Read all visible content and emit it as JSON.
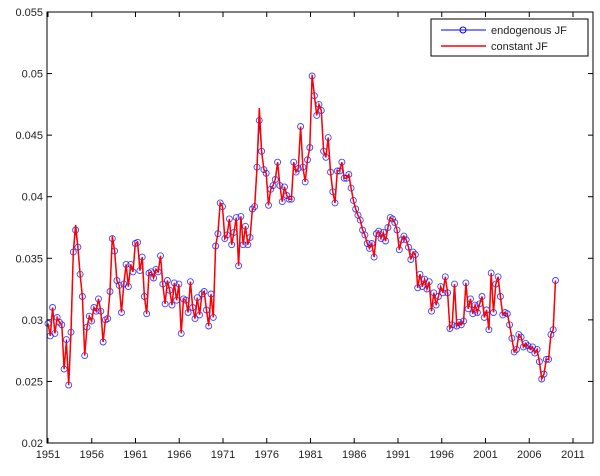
{
  "chart_data": {
    "type": "line",
    "title": "",
    "xlabel": "",
    "ylabel": "",
    "xlim": [
      1951,
      2011
    ],
    "ylim": [
      0.02,
      0.055
    ],
    "x_start": 1951,
    "x_end": 2009,
    "x_ticks": [
      "1951",
      "1956",
      "1961",
      "1966",
      "1971",
      "1976",
      "1981",
      "1986",
      "1991",
      "1996",
      "2001",
      "2006",
      "2011"
    ],
    "y_ticks": [
      "0.02",
      "0.025",
      "0.03",
      "0.035",
      "0.04",
      "0.045",
      "0.05",
      "0.055"
    ],
    "grid": false,
    "legend_position": "top-right",
    "series": [
      {
        "name": "endogenous JF",
        "color": "#0000ff",
        "marker": "circle",
        "values": [
          0.0297,
          0.0287,
          0.031,
          0.0289,
          0.0302,
          0.0298,
          0.0296,
          0.026,
          0.0284,
          0.0247,
          0.029,
          0.0355,
          0.0373,
          0.0359,
          0.0337,
          0.0319,
          0.0271,
          0.0294,
          0.0303,
          0.0299,
          0.031,
          0.0307,
          0.0317,
          0.0307,
          0.0282,
          0.03,
          0.0301,
          0.0323,
          0.0366,
          0.0356,
          0.0332,
          0.0328,
          0.0306,
          0.0329,
          0.0345,
          0.0327,
          0.0345,
          0.0339,
          0.0362,
          0.0363,
          0.034,
          0.0351,
          0.0319,
          0.0305,
          0.0338,
          0.0339,
          0.0334,
          0.0341,
          0.0339,
          0.0352,
          0.0329,
          0.0313,
          0.0332,
          0.0324,
          0.0312,
          0.033,
          0.0316,
          0.0329,
          0.0289,
          0.0317,
          0.0316,
          0.0306,
          0.0331,
          0.031,
          0.0301,
          0.0318,
          0.0304,
          0.0321,
          0.0323,
          0.0308,
          0.0295,
          0.0321,
          0.0302,
          0.036,
          0.037,
          0.0395,
          0.0392,
          0.0366,
          0.0369,
          0.0382,
          0.0361,
          0.0371,
          0.0383,
          0.0344,
          0.0384,
          0.0361,
          0.0376,
          0.0361,
          0.0367,
          0.039,
          0.0392,
          0.0424,
          0.0462,
          0.0437,
          0.0422,
          0.0419,
          0.0393,
          0.0406,
          0.0409,
          0.0414,
          0.0428,
          0.0409,
          0.0396,
          0.0408,
          0.0401,
          0.0398,
          0.0398,
          0.0428,
          0.042,
          0.0423,
          0.0457,
          0.0424,
          0.0412,
          0.043,
          0.044,
          0.0498,
          0.0482,
          0.0466,
          0.0475,
          0.047,
          0.0437,
          0.0432,
          0.0448,
          0.042,
          0.0404,
          0.0395,
          0.0421,
          0.0421,
          0.0428,
          0.0415,
          0.0415,
          0.0418,
          0.0407,
          0.0397,
          0.039,
          0.0385,
          0.0381,
          0.0373,
          0.0369,
          0.0362,
          0.0358,
          0.0362,
          0.0351,
          0.037,
          0.0372,
          0.0366,
          0.0371,
          0.0364,
          0.0375,
          0.0383,
          0.0382,
          0.0379,
          0.0373,
          0.0357,
          0.0365,
          0.0368,
          0.0365,
          0.0359,
          0.0349,
          0.0355,
          0.0353,
          0.0326,
          0.0337,
          0.0327,
          0.0333,
          0.0325,
          0.0331,
          0.0307,
          0.0322,
          0.0312,
          0.0319,
          0.0327,
          0.0322,
          0.0335,
          0.0322,
          0.0293,
          0.0296,
          0.0329,
          0.0295,
          0.0298,
          0.0296,
          0.0299,
          0.033,
          0.0309,
          0.0317,
          0.0305,
          0.0312,
          0.0306,
          0.0313,
          0.0319,
          0.0302,
          0.0308,
          0.0292,
          0.0338,
          0.0306,
          0.0329,
          0.0335,
          0.0319,
          0.0304,
          0.0306,
          0.0305,
          0.0296,
          0.0285,
          0.0274,
          0.0276,
          0.0288,
          0.0286,
          0.0278,
          0.0281,
          0.0279,
          0.0276,
          0.0278,
          0.0273,
          0.0276,
          0.0266,
          0.0252,
          0.0256,
          0.0268,
          0.0268,
          0.0288,
          0.0292,
          0.0332
        ]
      },
      {
        "name": "constant JF",
        "color": "#ff0000",
        "marker": "none",
        "same_as": "endogenous JF",
        "overrides": {
          "12": 0.0377,
          "92": 0.0472,
          "115": 0.0499,
          "28": 0.0368,
          "8": 0.0282
        }
      }
    ]
  }
}
